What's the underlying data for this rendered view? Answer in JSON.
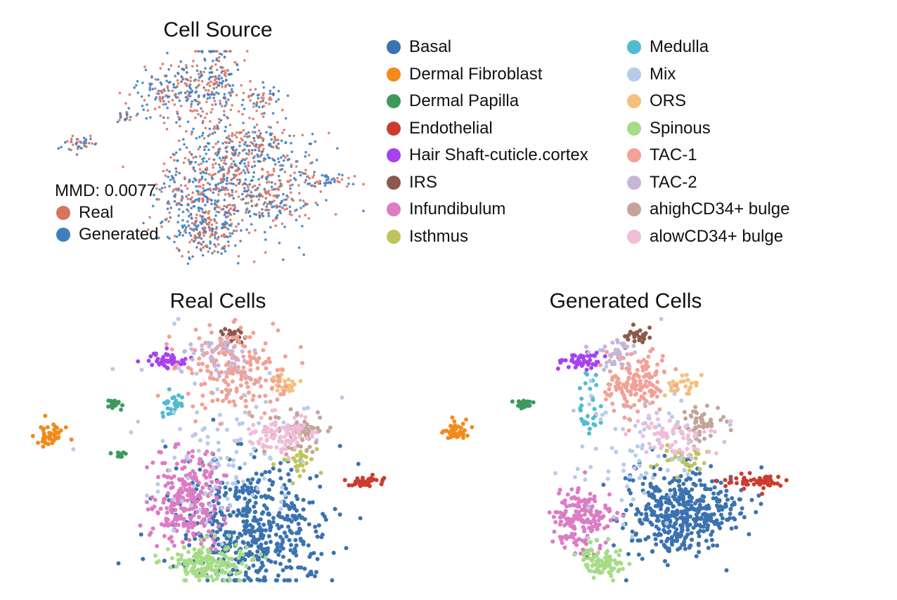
{
  "titles": {
    "source": "Cell Source",
    "real": "Real Cells",
    "generated": "Generated Cells"
  },
  "source_legend": {
    "mmd": "MMD: 0.0077",
    "items": [
      {
        "label": "Real",
        "color": "#d9725f"
      },
      {
        "label": "Generated",
        "color": "#3f7fc0"
      }
    ]
  },
  "cell_types": [
    {
      "label": "Basal",
      "color": "#3b72b0"
    },
    {
      "label": "Dermal Fibroblast",
      "color": "#f28a1c"
    },
    {
      "label": "Dermal Papilla",
      "color": "#3e9a5c"
    },
    {
      "label": "Endothelial",
      "color": "#cc3b2e"
    },
    {
      "label": "Hair Shaft-cuticle.cortex",
      "color": "#a742ee"
    },
    {
      "label": "IRS",
      "color": "#8c5a4c"
    },
    {
      "label": "Infundibulum",
      "color": "#dc7cc4"
    },
    {
      "label": "Isthmus",
      "color": "#bfc45a"
    },
    {
      "label": "Medulla",
      "color": "#4fbccf"
    },
    {
      "label": "Mix",
      "color": "#b8cbea"
    },
    {
      "label": "ORS",
      "color": "#f4c07f"
    },
    {
      "label": "Spinous",
      "color": "#a6dc86"
    },
    {
      "label": "TAC-1",
      "color": "#f2a196"
    },
    {
      "label": "TAC-2",
      "color": "#c6b5db"
    },
    {
      "label": "ahighCD34+ bulge",
      "color": "#c4a49a"
    },
    {
      "label": "alowCD34+ bulge",
      "color": "#f1bcd8"
    }
  ],
  "chart_data": [
    {
      "type": "scatter",
      "title": "Cell Source",
      "series": [
        {
          "name": "Real"
        },
        {
          "name": "Generated"
        }
      ],
      "annotation": "MMD: 0.0077"
    },
    {
      "type": "scatter",
      "title": "Real Cells",
      "series_names": [
        "Basal",
        "Dermal Fibroblast",
        "Dermal Papilla",
        "Endothelial",
        "Hair Shaft-cuticle.cortex",
        "IRS",
        "Infundibulum",
        "Isthmus",
        "Medulla",
        "Mix",
        "ORS",
        "Spinous",
        "TAC-1",
        "TAC-2",
        "ahighCD34+ bulge",
        "alowCD34+ bulge"
      ]
    },
    {
      "type": "scatter",
      "title": "Generated Cells",
      "series_names": [
        "Basal",
        "Dermal Fibroblast",
        "Dermal Papilla",
        "Endothelial",
        "Hair Shaft-cuticle.cortex",
        "IRS",
        "Infundibulum",
        "Isthmus",
        "Medulla",
        "Mix",
        "ORS",
        "Spinous",
        "TAC-1",
        "TAC-2",
        "ahighCD34+ bulge",
        "alowCD34+ bulge"
      ]
    }
  ]
}
